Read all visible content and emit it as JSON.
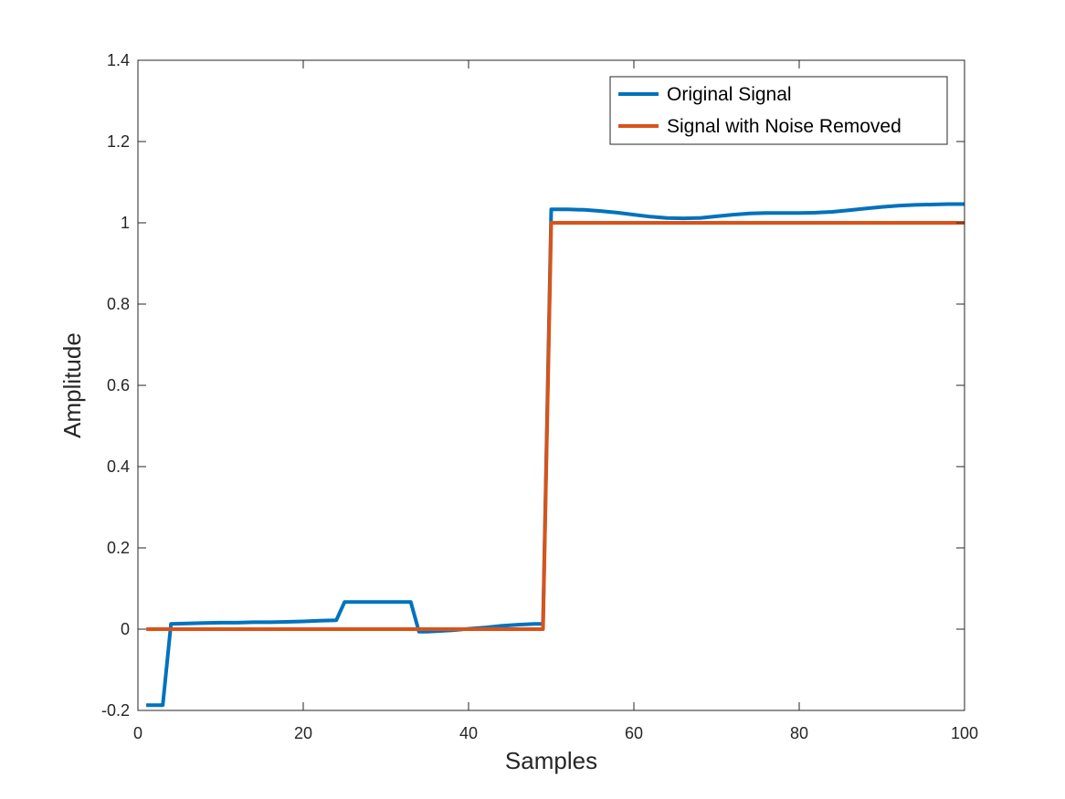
{
  "chart_data": {
    "type": "line",
    "xlabel": "Samples",
    "ylabel": "Amplitude",
    "xlim": [
      0,
      100
    ],
    "ylim": [
      -0.2,
      1.4
    ],
    "xticks": [
      0,
      20,
      40,
      60,
      80,
      100
    ],
    "yticks": [
      -0.2,
      0,
      0.2,
      0.4,
      0.6,
      0.8,
      1,
      1.2,
      1.4
    ],
    "xtick_labels": [
      "0",
      "20",
      "40",
      "60",
      "80",
      "100"
    ],
    "ytick_labels": [
      "-0.2",
      "0",
      "0.2",
      "0.4",
      "0.6",
      "0.8",
      "1",
      "1.2",
      "1.4"
    ],
    "grid": false,
    "legend_position": "top-right",
    "series": [
      {
        "name": "Original Signal",
        "color": "#0072BD",
        "x": [
          1,
          2,
          3,
          4,
          6,
          8,
          10,
          12,
          14,
          16,
          18,
          20,
          22,
          24,
          25,
          26,
          28,
          30,
          32,
          33,
          34,
          35,
          36,
          38,
          40,
          42,
          44,
          46,
          48,
          49,
          50,
          52,
          54,
          56,
          58,
          60,
          62,
          64,
          66,
          68,
          70,
          72,
          74,
          76,
          78,
          80,
          82,
          84,
          86,
          88,
          90,
          92,
          94,
          96,
          98,
          100
        ],
        "values": [
          -0.187,
          -0.187,
          -0.187,
          0.013,
          0.014,
          0.015,
          0.016,
          0.016,
          0.017,
          0.017,
          0.018,
          0.019,
          0.021,
          0.022,
          0.067,
          0.067,
          0.067,
          0.067,
          0.067,
          0.067,
          -0.006,
          -0.006,
          -0.005,
          -0.003,
          0.001,
          0.004,
          0.008,
          0.011,
          0.013,
          0.013,
          1.033,
          1.033,
          1.032,
          1.029,
          1.025,
          1.02,
          1.015,
          1.012,
          1.011,
          1.012,
          1.016,
          1.02,
          1.023,
          1.024,
          1.024,
          1.024,
          1.025,
          1.027,
          1.031,
          1.035,
          1.039,
          1.042,
          1.044,
          1.045,
          1.046,
          1.046
        ]
      },
      {
        "name": "Signal with Noise Removed",
        "color": "#D95319",
        "x": [
          1,
          49,
          50,
          100
        ],
        "values": [
          0,
          0,
          1,
          1
        ]
      }
    ]
  }
}
